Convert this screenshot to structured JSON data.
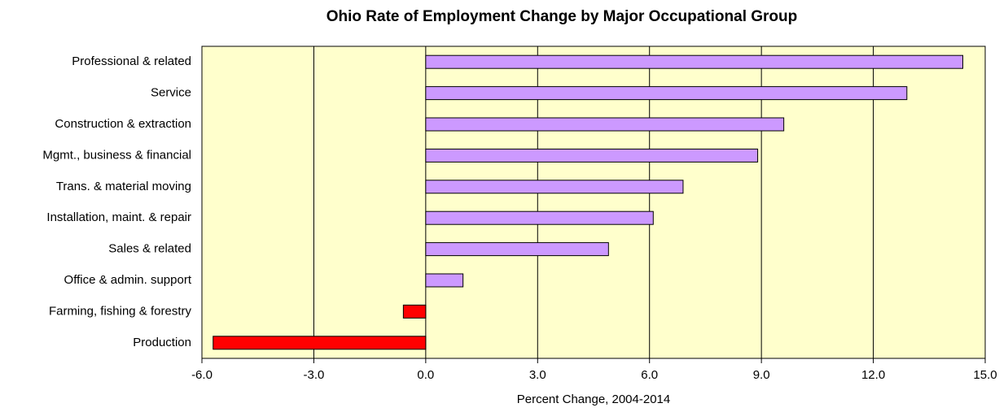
{
  "chart_data": {
    "type": "hbar",
    "title": "Ohio Rate of Employment Change by Major Occupational Group",
    "x_label": "Percent Change, 2004-2014",
    "categories": [
      "Professional & related",
      "Service",
      "Construction & extraction",
      "Mgmt., business & financial",
      "Trans. & material moving",
      "Installation, maint. & repair",
      "Sales & related",
      "Office & admin. support",
      "Farming, fishing & forestry",
      "Production"
    ],
    "values": [
      14.4,
      12.9,
      9.6,
      8.9,
      6.9,
      6.1,
      4.9,
      1.0,
      -0.6,
      -5.7
    ],
    "color": "#cc99ff",
    "negative_color": "#ff0000",
    "xlim": [
      -6,
      15
    ],
    "xticks": [
      {
        "value": -6,
        "label": "-6.0"
      },
      {
        "value": -3,
        "label": "-3.0"
      },
      {
        "value": 0,
        "label": "0.0"
      },
      {
        "value": 3,
        "label": "3.0"
      },
      {
        "value": 6,
        "label": "6.0"
      },
      {
        "value": 9,
        "label": "9.0"
      },
      {
        "value": 12,
        "label": "12.0"
      },
      {
        "value": 15,
        "label": "15.0"
      }
    ],
    "grid": true,
    "background": "#ffffcc"
  }
}
